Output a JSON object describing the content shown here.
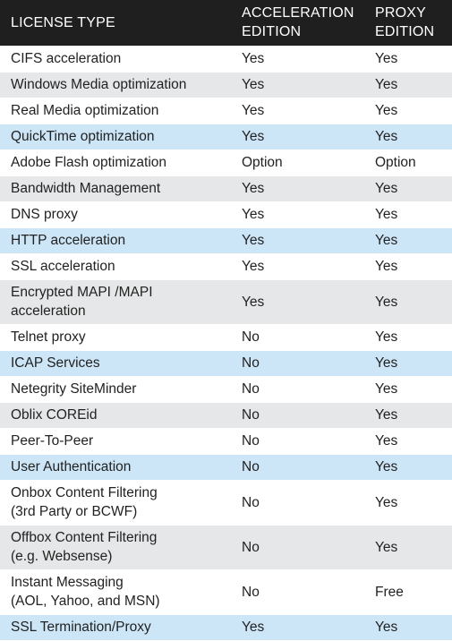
{
  "table": {
    "headers": {
      "col1": "LICENSE TYPE",
      "col2_line1": "ACCELERATION",
      "col2_line2": "EDITION",
      "col3_line1": "PROXY",
      "col3_line2": "EDITION"
    },
    "row_colors": {
      "white": "#ffffff",
      "gray": "#e6e7e8",
      "blue": "#cde6f7",
      "header": "#1f1f1f"
    },
    "rows": [
      {
        "feature": [
          "CIFS acceleration"
        ],
        "acceleration": "Yes",
        "proxy": "Yes",
        "shade": "white"
      },
      {
        "feature": [
          "Windows Media optimization"
        ],
        "acceleration": "Yes",
        "proxy": "Yes",
        "shade": "gray"
      },
      {
        "feature": [
          "Real Media optimization"
        ],
        "acceleration": "Yes",
        "proxy": "Yes",
        "shade": "white"
      },
      {
        "feature": [
          "QuickTime optimization"
        ],
        "acceleration": "Yes",
        "proxy": "Yes",
        "shade": "blue"
      },
      {
        "feature": [
          "Adobe Flash optimization"
        ],
        "acceleration": "Option",
        "proxy": "Option",
        "shade": "white"
      },
      {
        "feature": [
          "Bandwidth Management"
        ],
        "acceleration": "Yes",
        "proxy": "Yes",
        "shade": "gray"
      },
      {
        "feature": [
          "DNS proxy"
        ],
        "acceleration": "Yes",
        "proxy": "Yes",
        "shade": "white"
      },
      {
        "feature": [
          "HTTP acceleration"
        ],
        "acceleration": "Yes",
        "proxy": "Yes",
        "shade": "blue"
      },
      {
        "feature": [
          "SSL acceleration"
        ],
        "acceleration": "Yes",
        "proxy": "Yes",
        "shade": "white"
      },
      {
        "feature": [
          "Encrypted MAPI /MAPI",
          "acceleration"
        ],
        "acceleration": "Yes",
        "proxy": "Yes",
        "shade": "gray"
      },
      {
        "feature": [
          "Telnet proxy"
        ],
        "acceleration": "No",
        "proxy": "Yes",
        "shade": "white"
      },
      {
        "feature": [
          "ICAP Services"
        ],
        "acceleration": "No",
        "proxy": "Yes",
        "shade": "blue"
      },
      {
        "feature": [
          "Netegrity SiteMinder"
        ],
        "acceleration": "No",
        "proxy": "Yes",
        "shade": "white"
      },
      {
        "feature": [
          "Oblix COREid"
        ],
        "acceleration": "No",
        "proxy": "Yes",
        "shade": "gray"
      },
      {
        "feature": [
          "Peer-To-Peer"
        ],
        "acceleration": "No",
        "proxy": "Yes",
        "shade": "white"
      },
      {
        "feature": [
          "User Authentication"
        ],
        "acceleration": "No",
        "proxy": "Yes",
        "shade": "blue"
      },
      {
        "feature": [
          "Onbox Content Filtering",
          "(3rd Party or BCWF)"
        ],
        "acceleration": "No",
        "proxy": "Yes",
        "shade": "white"
      },
      {
        "feature": [
          "Offbox Content Filtering",
          "(e.g. Websense)"
        ],
        "acceleration": "No",
        "proxy": "Yes",
        "shade": "gray"
      },
      {
        "feature": [
          "Instant Messaging",
          "(AOL, Yahoo, and MSN)"
        ],
        "acceleration": "No",
        "proxy": "Free",
        "shade": "white"
      },
      {
        "feature": [
          "SSL Termination/Proxy"
        ],
        "acceleration": "Yes",
        "proxy": "Yes",
        "shade": "blue"
      }
    ]
  }
}
